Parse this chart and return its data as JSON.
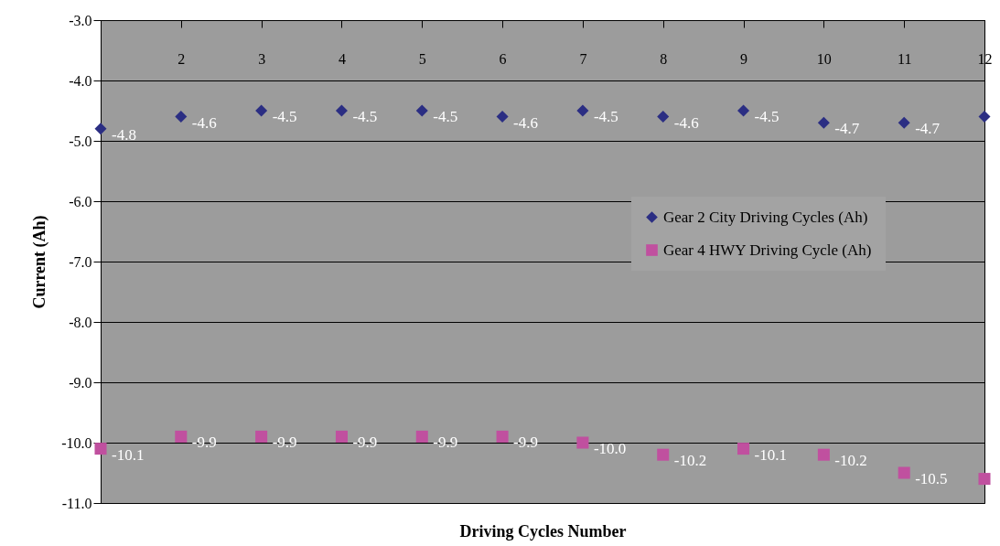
{
  "chart_data": {
    "type": "scatter",
    "xlabel": "Driving Cycles Number",
    "ylabel": "Current (Ah)",
    "categories": [
      null,
      "2",
      "3",
      "4",
      "5",
      "6",
      "7",
      "8",
      "9",
      "10",
      "11",
      "12"
    ],
    "series": [
      {
        "name": "Gear 2 City Driving Cycles (Ah)",
        "color": "#2b2e83",
        "marker": "diamond",
        "values": [
          -4.8,
          -4.6,
          -4.5,
          -4.5,
          -4.5,
          -4.6,
          -4.5,
          -4.6,
          -4.5,
          -4.7,
          -4.7,
          -4.6
        ],
        "value_labels": [
          "-4.8",
          "-4.6",
          "-4.5",
          "-4.5",
          "-4.5",
          "-4.6",
          "-4.5",
          "-4.6",
          "-4.5",
          "-4.7",
          "-4.7",
          null
        ]
      },
      {
        "name": "Gear 4 HWY Driving Cycle (Ah)",
        "color": "#c0509f",
        "marker": "square",
        "values": [
          -10.1,
          -9.9,
          -9.9,
          -9.9,
          -9.9,
          -9.9,
          -10.0,
          -10.2,
          -10.1,
          -10.2,
          -10.5,
          -10.6
        ],
        "value_labels": [
          "-10.1",
          "-9.9",
          "-9.9",
          "-9.9",
          "-9.9",
          "-9.9",
          "-10.0",
          "-10.2",
          "-10.1",
          "-10.2",
          "-10.5",
          null
        ]
      }
    ],
    "ylim": [
      -11.0,
      -3.0
    ],
    "yticks": [
      {
        "value": -3,
        "label": "-3.0"
      },
      {
        "value": -4,
        "label": "-4.0"
      },
      {
        "value": -5,
        "label": "-5.0"
      },
      {
        "value": -6,
        "label": "-6.0"
      },
      {
        "value": -7,
        "label": "-7.0"
      },
      {
        "value": -8,
        "label": "-8.0"
      },
      {
        "value": -9,
        "label": "-9.0"
      },
      {
        "value": -10,
        "label": "-10.0"
      },
      {
        "value": -11,
        "label": "-11.0"
      }
    ],
    "grid": "y",
    "legend": "right"
  }
}
